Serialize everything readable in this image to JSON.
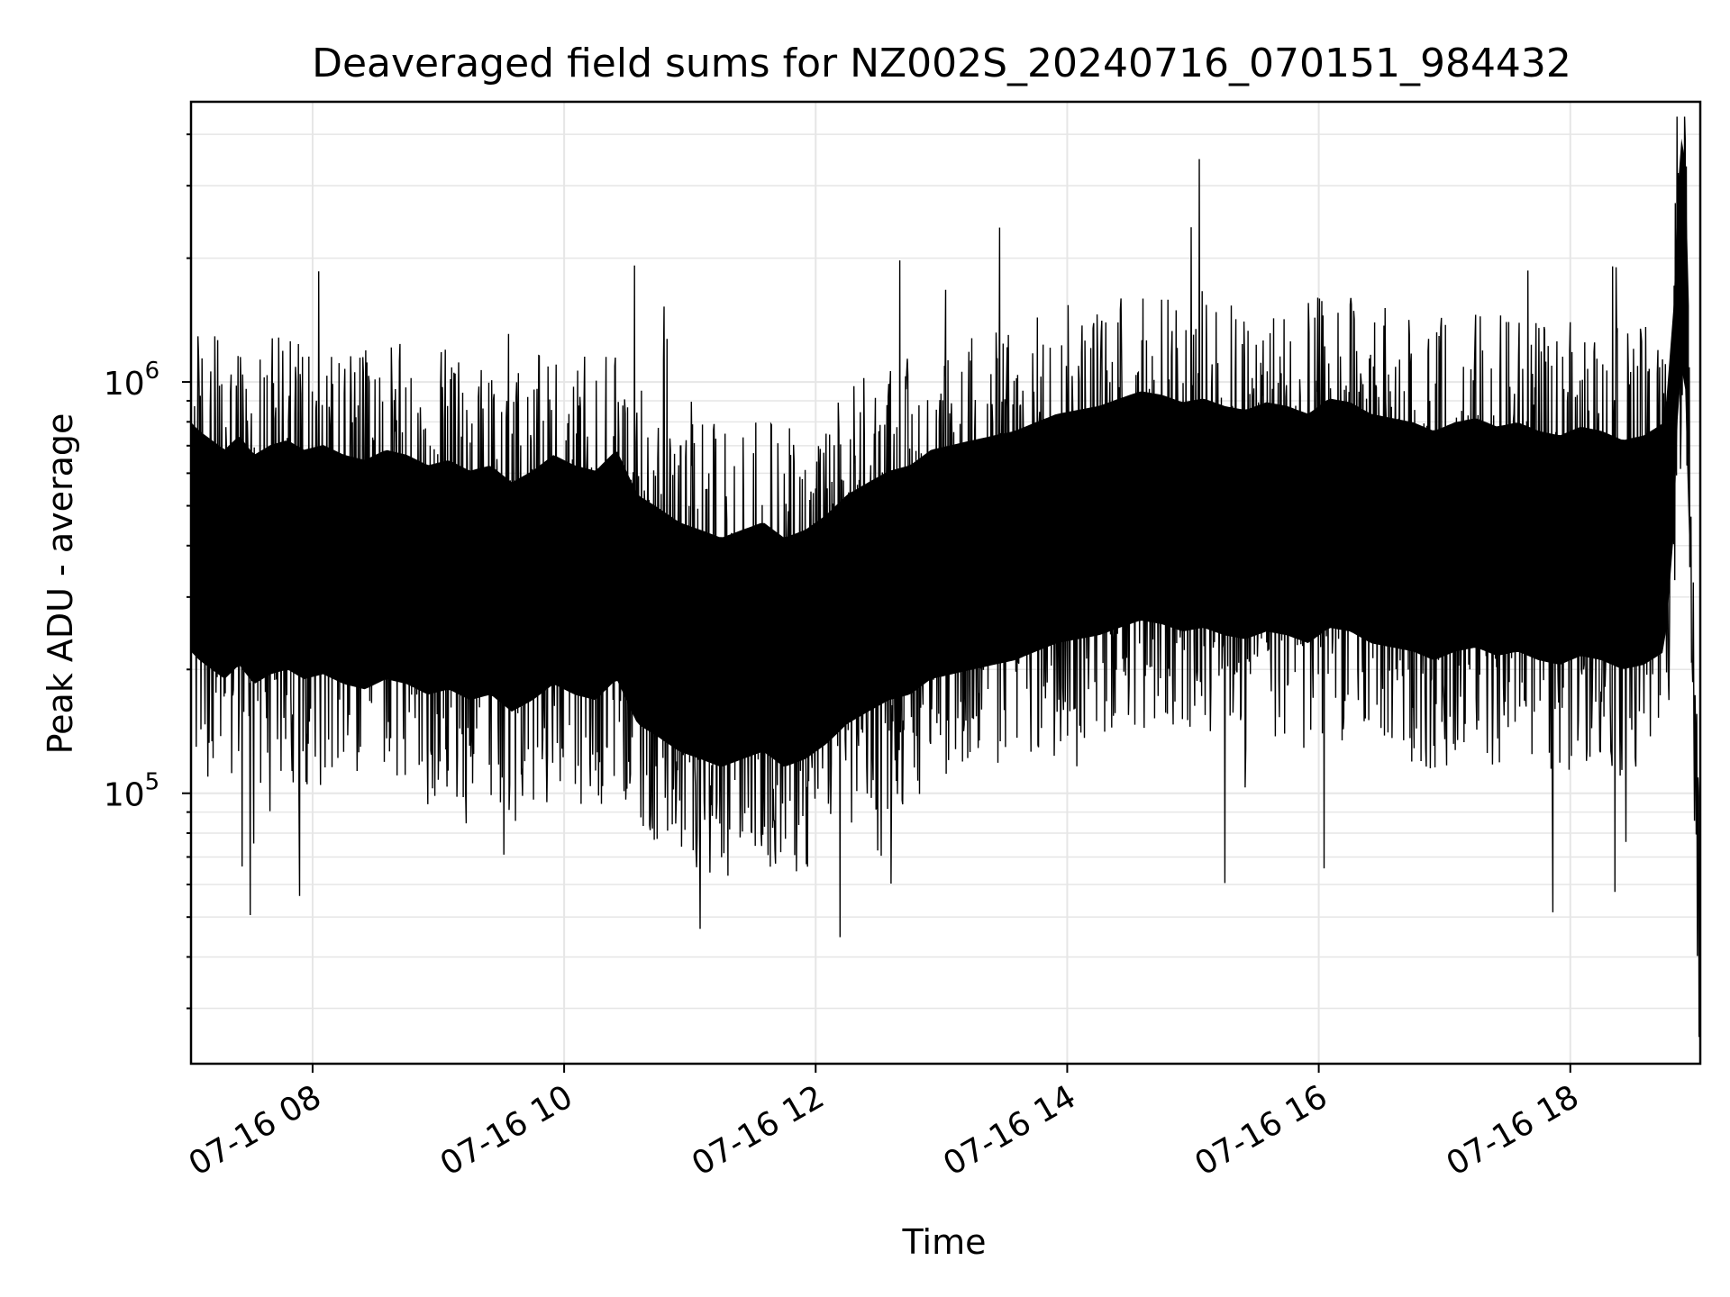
{
  "chart_data": {
    "type": "line",
    "title": "Deaveraged field sums for NZ002S_20240716_070151_984432",
    "xlabel": "Time",
    "ylabel": "Peak ADU - average",
    "x_ticks": [
      "07-16 08",
      "07-16 10",
      "07-16 12",
      "07-16 14",
      "07-16 16",
      "07-16 18"
    ],
    "y_ticks": [
      {
        "base": "10",
        "exp": "5",
        "value": 100000
      },
      {
        "base": "10",
        "exp": "6",
        "value": 1000000
      }
    ],
    "xlim": [
      "2024-07-16 07:02",
      "2024-07-16 19:02"
    ],
    "ylim": [
      22000,
      4800000
    ],
    "yscale": "log",
    "grid": true,
    "line_color": "#000000",
    "grid_color": "#e6e6e6",
    "series": [
      {
        "x": [
          "07:02",
          "07:06",
          "07:12",
          "07:18",
          "07:25",
          "07:32",
          "07:40",
          "07:48",
          "07:56",
          "08:05",
          "08:15",
          "08:25",
          "08:35",
          "08:45",
          "08:55",
          "09:05",
          "09:15",
          "09:25",
          "09:35",
          "09:45",
          "09:55",
          "10:05",
          "10:15",
          "10:25",
          "10:35",
          "10:45",
          "10:55",
          "11:05",
          "11:15",
          "11:25",
          "11:35",
          "11:45",
          "11:55",
          "12:05",
          "12:15",
          "12:25",
          "12:35",
          "12:45",
          "12:55",
          "13:05",
          "13:15",
          "13:25",
          "13:35",
          "13:45",
          "13:55",
          "14:05",
          "14:15",
          "14:25",
          "14:35",
          "14:45",
          "14:55",
          "15:05",
          "15:15",
          "15:25",
          "15:35",
          "15:45",
          "15:55",
          "16:05",
          "16:15",
          "16:25",
          "16:35",
          "16:45",
          "16:55",
          "17:05",
          "17:15",
          "17:25",
          "17:35",
          "17:45",
          "17:55",
          "18:05",
          "18:15",
          "18:25",
          "18:35",
          "18:45",
          "18:50",
          "18:52",
          "18:55",
          "18:58",
          "19:00",
          "19:02"
        ],
        "values": [
          420000,
          400000,
          380000,
          360000,
          390000,
          350000,
          370000,
          380000,
          360000,
          370000,
          350000,
          340000,
          360000,
          350000,
          330000,
          340000,
          320000,
          330000,
          300000,
          320000,
          350000,
          330000,
          320000,
          360000,
          280000,
          260000,
          240000,
          230000,
          220000,
          230000,
          240000,
          220000,
          230000,
          250000,
          280000,
          300000,
          320000,
          330000,
          360000,
          370000,
          380000,
          390000,
          400000,
          420000,
          440000,
          450000,
          460000,
          480000,
          500000,
          490000,
          470000,
          480000,
          460000,
          450000,
          470000,
          460000,
          440000,
          480000,
          470000,
          440000,
          430000,
          420000,
          400000,
          420000,
          430000,
          410000,
          420000,
          400000,
          390000,
          410000,
          400000,
          380000,
          390000,
          420000,
          900000,
          2200000,
          1800000,
          400000,
          120000,
          40000
        ]
      }
    ]
  }
}
